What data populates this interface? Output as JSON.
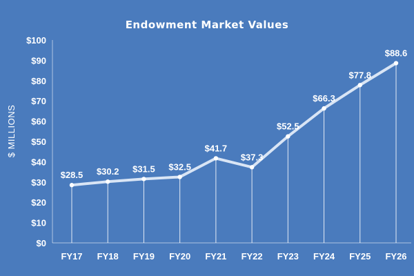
{
  "chart_data": {
    "type": "line",
    "title": "Endowment Market Values",
    "xlabel": "",
    "ylabel": "$ MILLIONS",
    "categories": [
      "FY17",
      "FY18",
      "FY19",
      "FY20",
      "FY21",
      "FY22",
      "FY23",
      "FY24",
      "FY25",
      "FY26"
    ],
    "series": [
      {
        "values": [
          28.5,
          30.2,
          31.5,
          32.5,
          41.7,
          37.3,
          52.5,
          66.3,
          77.8,
          88.6
        ],
        "labels": [
          "$28.5",
          "$30.2",
          "$31.5",
          "$32.5",
          "$41.7",
          "$37.3",
          "$52.5",
          "$66.3",
          "$77.8",
          "$88.6"
        ]
      }
    ],
    "yticks": [
      0,
      10,
      20,
      30,
      40,
      50,
      60,
      70,
      80,
      90,
      100
    ],
    "ytick_labels": [
      "$0",
      "$10",
      "$20",
      "$30",
      "$40",
      "$50",
      "$60",
      "$70",
      "$80",
      "$90",
      "$100"
    ],
    "ylim": [
      0,
      100
    ],
    "grid": false,
    "drop_lines": true,
    "colors": {
      "background": "#4a7bbd",
      "line": "#d9e5f5",
      "text": "#ffffff"
    }
  }
}
